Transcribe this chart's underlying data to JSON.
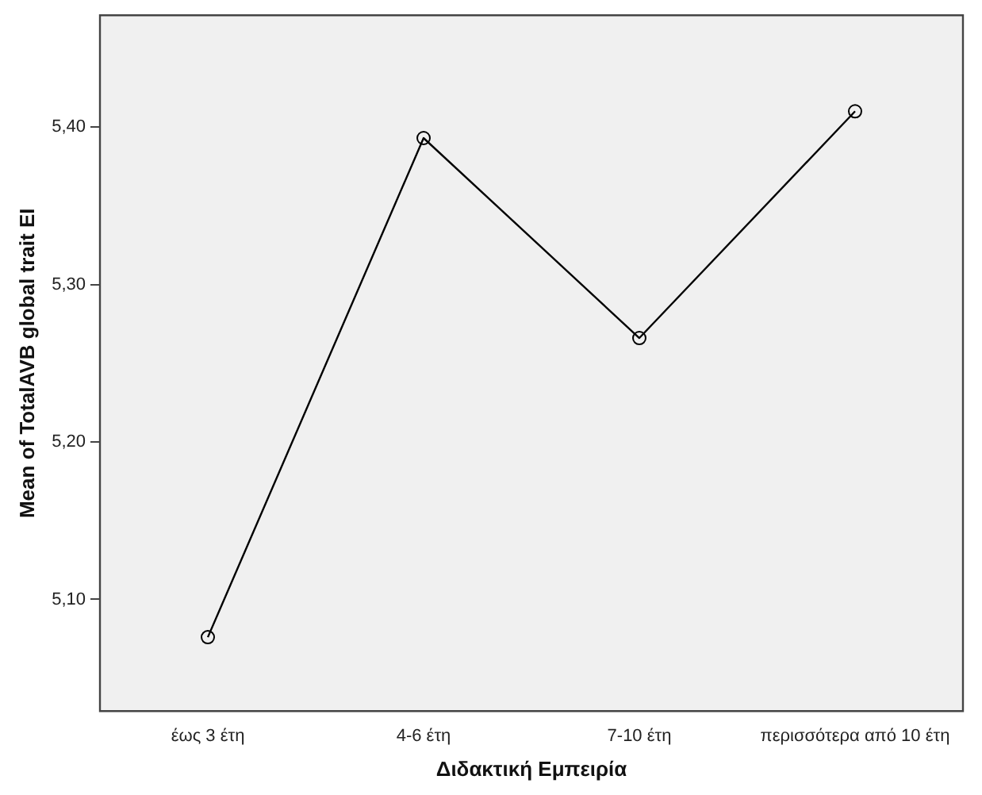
{
  "chart_data": {
    "type": "line",
    "xlabel": "Διδακτική Εμπειρία",
    "ylabel": "Mean of TotalAVB global trait EI",
    "categories": [
      "έως 3 έτη",
      "4-6 έτη",
      "7-10 έτη",
      "περισσότερα από 10 έτη"
    ],
    "values": [
      5.076,
      5.393,
      5.266,
      5.41
    ],
    "color": "#000000",
    "ylim": [
      5.029,
      5.471
    ],
    "yticks": [
      {
        "value": 5.1,
        "label": "5,10"
      },
      {
        "value": 5.2,
        "label": "5,20"
      },
      {
        "value": 5.3,
        "label": "5,30"
      },
      {
        "value": 5.4,
        "label": "5,40"
      }
    ],
    "grid": false,
    "legend": false,
    "marker": "circle",
    "line_style": "solid"
  }
}
